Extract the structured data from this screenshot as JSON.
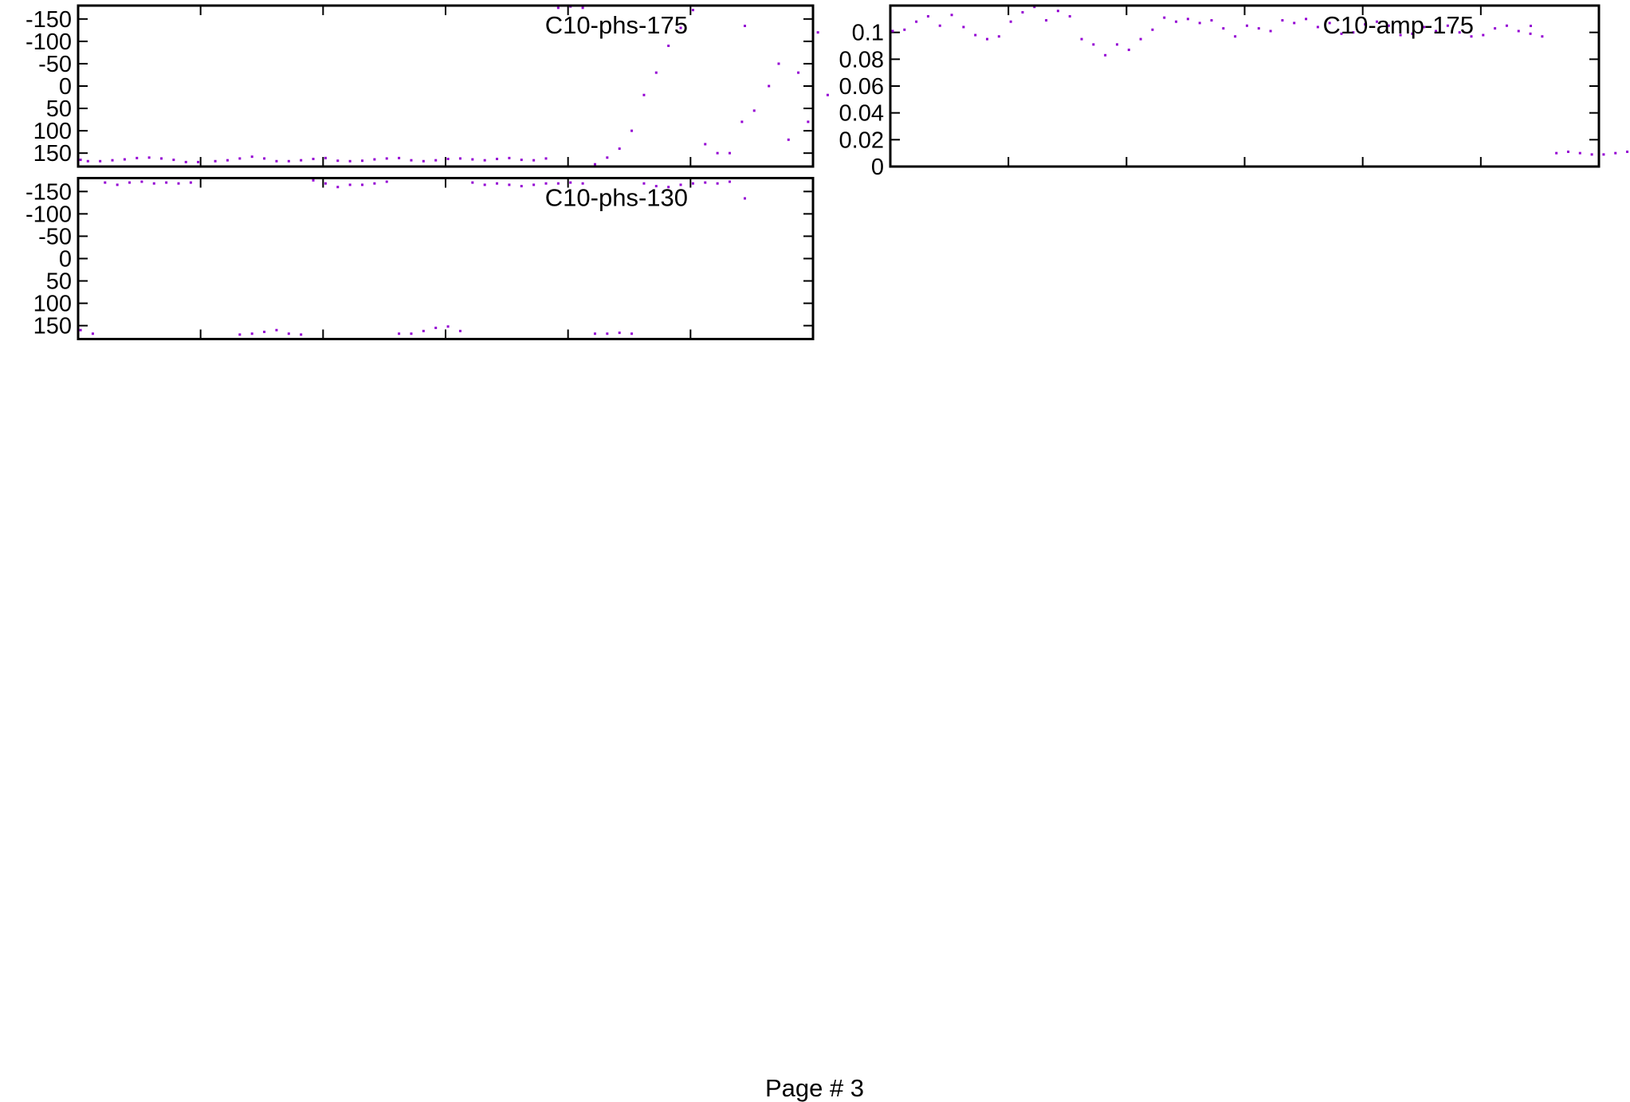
{
  "page_label": "Page # 3",
  "colors": {
    "points": "#9400d3",
    "axes": "#000000"
  },
  "chart_data": [
    {
      "type": "scatter",
      "key": "C10-phs-175",
      "kind": "phs",
      "col": 0,
      "row": 0,
      "series": [
        {
          "name": "C10-phs-175",
          "x": [
            21.401,
            21.404,
            21.409,
            21.414,
            21.419,
            21.424,
            21.429,
            21.434,
            21.439,
            21.444,
            21.449,
            21.456,
            21.461,
            21.466,
            21.471,
            21.476,
            21.481,
            21.486,
            21.491,
            21.496,
            21.501,
            21.506,
            21.511,
            21.516,
            21.521,
            21.526,
            21.531,
            21.536,
            21.541,
            21.546,
            21.551,
            21.556,
            21.561,
            21.566,
            21.571,
            21.576,
            21.581,
            21.586,
            21.591,
            21.596,
            21.601,
            21.606,
            21.611,
            21.616,
            21.621,
            21.626,
            21.631,
            21.636,
            21.641,
            21.646,
            21.651,
            21.656,
            21.661,
            21.666,
            21.671,
            21.676,
            21.682,
            21.686,
            21.69,
            21.694,
            21.698,
            21.702,
            21.706
          ],
          "y": [
            165,
            168,
            168,
            166,
            164,
            161,
            160,
            162,
            165,
            170,
            170,
            168,
            166,
            162,
            158,
            162,
            168,
            168,
            166,
            163,
            161,
            167,
            168,
            167,
            164,
            162,
            161,
            166,
            168,
            166,
            163,
            162,
            164,
            166,
            163,
            161,
            165,
            166,
            162,
            -175,
            -178,
            -175,
            175,
            160,
            140,
            100,
            20,
            -30,
            -90,
            -130,
            -170,
            130,
            150,
            150,
            80,
            55,
            0,
            -50,
            120,
            -30,
            80,
            -120,
            20
          ]
        }
      ]
    },
    {
      "type": "scatter",
      "key": "C10-amp-175",
      "kind": "amp",
      "col": 1,
      "row": 0,
      "series": [
        {
          "name": "C10-amp-175",
          "x": [
            21.401,
            21.406,
            21.411,
            21.416,
            21.421,
            21.426,
            21.431,
            21.436,
            21.441,
            21.446,
            21.451,
            21.456,
            21.461,
            21.466,
            21.471,
            21.476,
            21.481,
            21.486,
            21.491,
            21.496,
            21.501,
            21.506,
            21.511,
            21.516,
            21.521,
            21.526,
            21.531,
            21.536,
            21.541,
            21.546,
            21.551,
            21.556,
            21.561,
            21.566,
            21.571,
            21.576,
            21.581,
            21.586,
            21.591,
            21.596,
            21.601,
            21.606,
            21.611,
            21.616,
            21.621,
            21.626,
            21.631,
            21.636,
            21.641,
            21.646,
            21.651,
            21.656,
            21.661,
            21.666,
            21.671,
            21.676,
            21.682,
            21.687,
            21.692,
            21.697,
            21.702,
            21.707,
            21.712,
            21.717,
            21.722,
            21.727,
            21.732,
            21.737,
            21.742,
            21.747,
            21.752
          ],
          "y": [
            0.101,
            0.102,
            0.108,
            0.112,
            0.105,
            0.113,
            0.104,
            0.098,
            0.095,
            0.097,
            0.108,
            0.115,
            0.119,
            0.109,
            0.116,
            0.112,
            0.095,
            0.091,
            0.083,
            0.091,
            0.087,
            0.095,
            0.102,
            0.111,
            0.108,
            0.11,
            0.107,
            0.109,
            0.103,
            0.097,
            0.105,
            0.103,
            0.101,
            0.109,
            0.107,
            0.11,
            0.104,
            0.107,
            0.099,
            0.1,
            0.106,
            0.108,
            0.105,
            0.098,
            0.099,
            0.104,
            0.101,
            0.105,
            0.1,
            0.097,
            0.098,
            0.103,
            0.105,
            0.101,
            0.099,
            0.097,
            0.01,
            0.011,
            0.01,
            0.009,
            0.009,
            0.01,
            0.011,
            0.011,
            0.012,
            0.013,
            0.016,
            0.013,
            0.011,
            0.01,
            0.01
          ]
        }
      ]
    },
    {
      "type": "scatter",
      "key": "C10-phs-130",
      "kind": "phs",
      "col": 0,
      "row": 1,
      "series": [
        {
          "name": "C10-phs-130",
          "x": [
            21.401,
            21.406,
            21.411,
            21.416,
            21.421,
            21.426,
            21.431,
            21.436,
            21.441,
            21.446,
            21.466,
            21.471,
            21.476,
            21.481,
            21.486,
            21.491,
            21.496,
            21.501,
            21.506,
            21.511,
            21.516,
            21.521,
            21.526,
            21.531,
            21.536,
            21.541,
            21.546,
            21.551,
            21.556,
            21.561,
            21.566,
            21.571,
            21.576,
            21.581,
            21.586,
            21.591,
            21.596,
            21.601,
            21.606,
            21.611,
            21.616,
            21.621,
            21.626,
            21.631,
            21.636,
            21.641,
            21.646,
            21.651,
            21.656,
            21.661,
            21.666
          ],
          "y": [
            160,
            168,
            -170,
            -165,
            -170,
            -172,
            -168,
            -170,
            -168,
            -170,
            170,
            168,
            164,
            160,
            168,
            170,
            -175,
            -168,
            -160,
            -165,
            -165,
            -168,
            -172,
            168,
            168,
            162,
            155,
            152,
            162,
            -170,
            -165,
            -168,
            -165,
            -162,
            -165,
            -168,
            -168,
            -170,
            -168,
            168,
            168,
            166,
            168,
            -168,
            -162,
            -160,
            -165,
            -168,
            -170,
            -168,
            -172
          ]
        }
      ]
    }
  ]
}
